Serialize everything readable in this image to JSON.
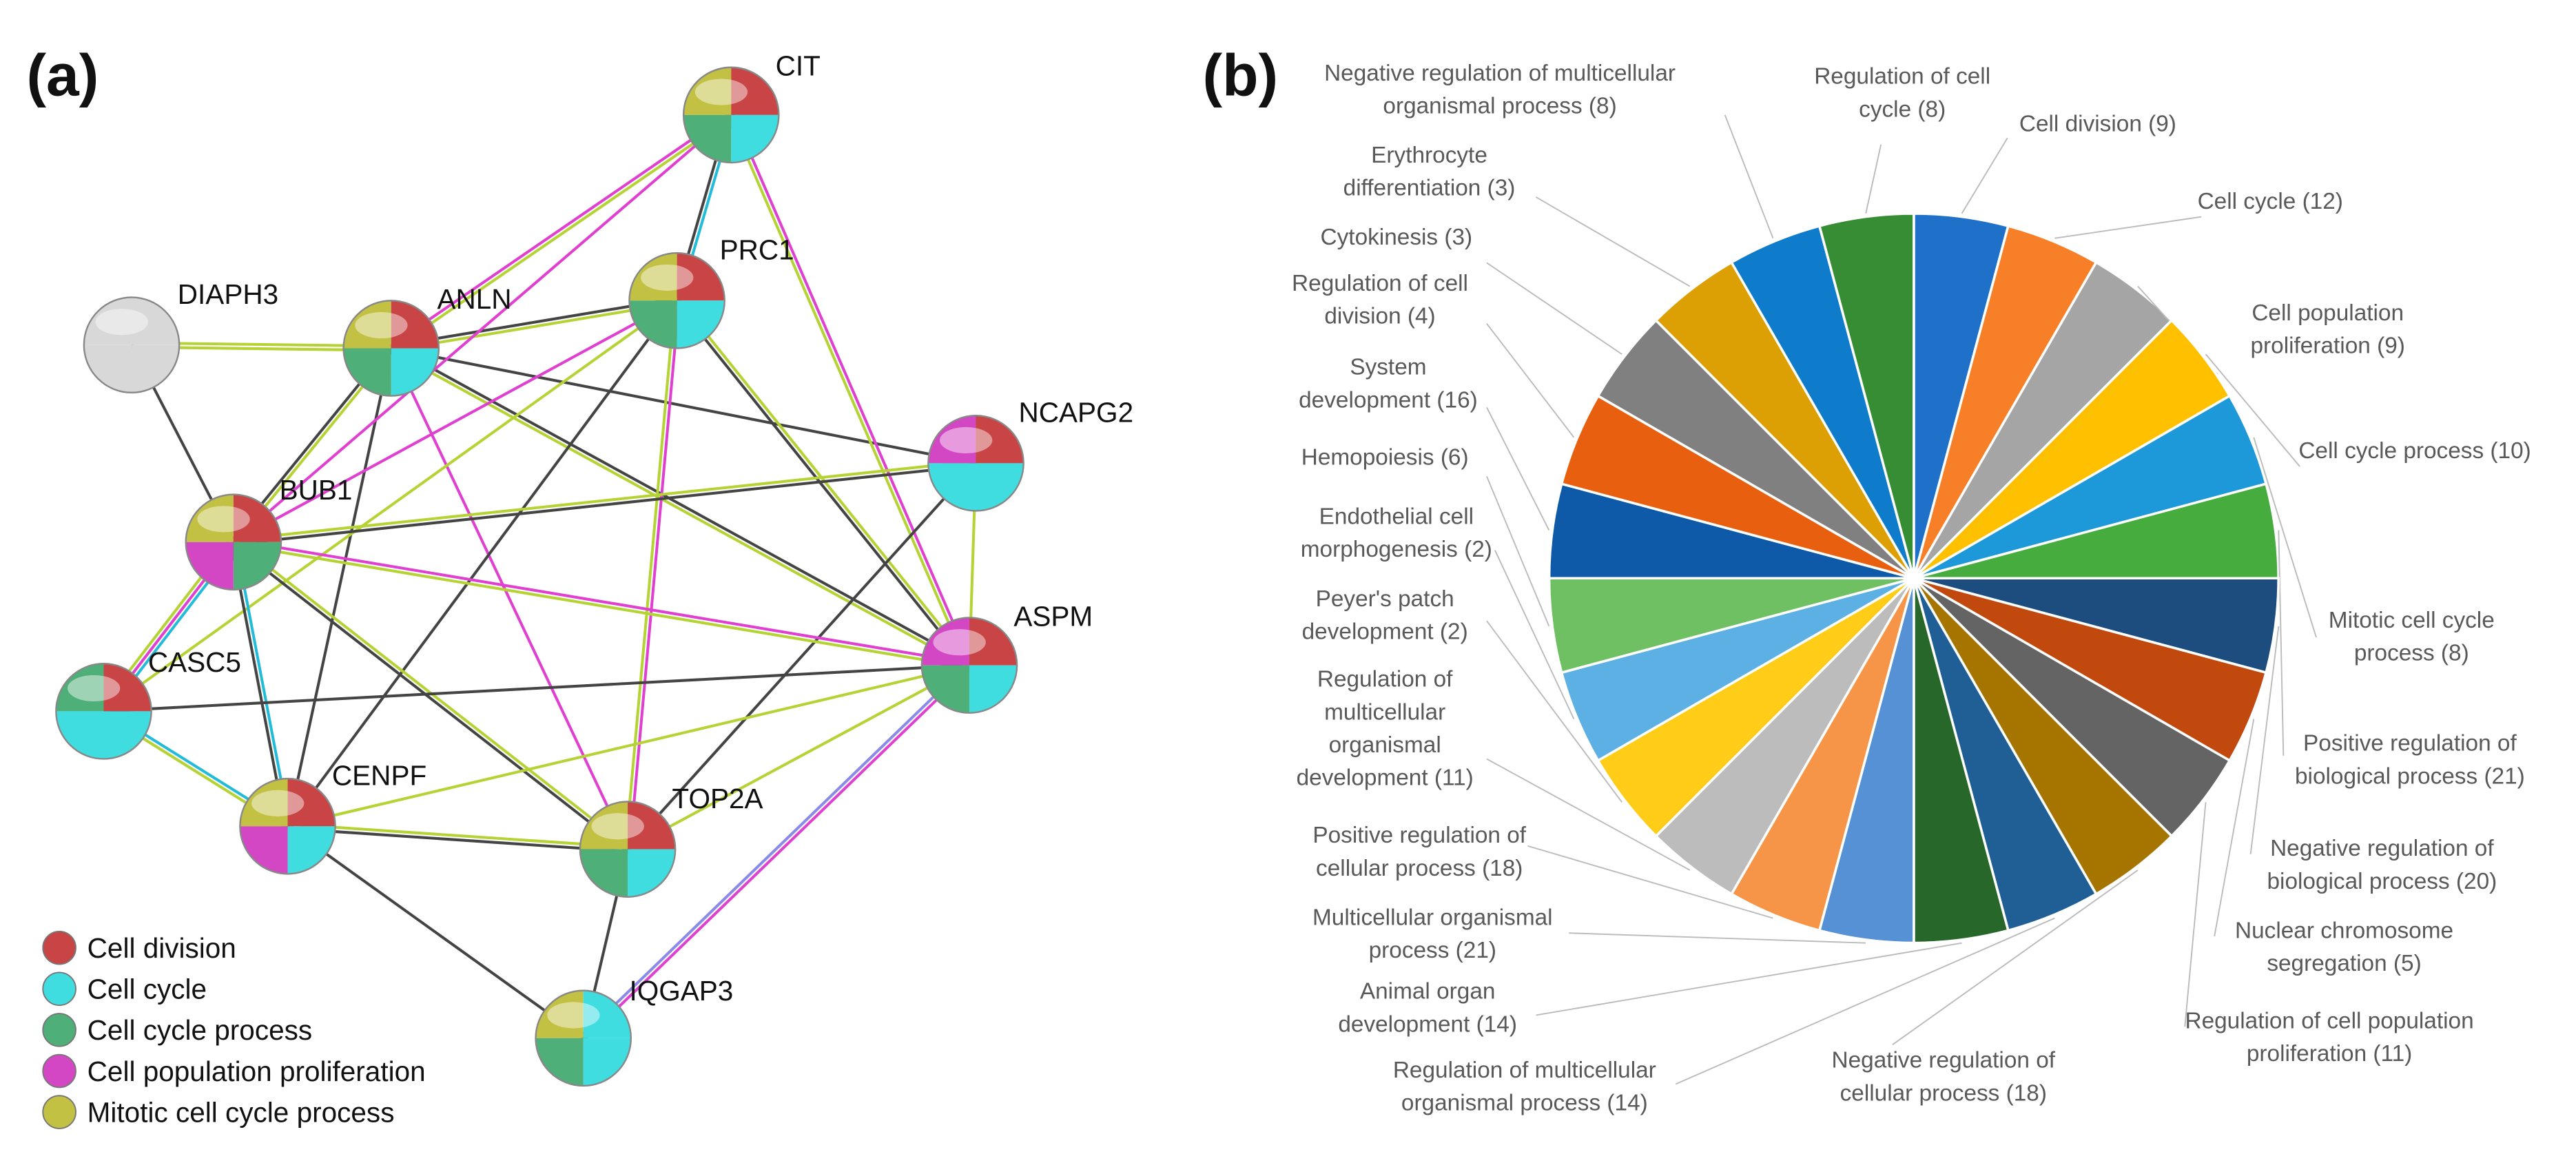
{
  "panel_a": {
    "label": "(a)",
    "nodes": [
      {
        "label": "CIT"
      },
      {
        "label": "PRC1"
      },
      {
        "label": "ANLN"
      },
      {
        "label": "DIAPH3"
      },
      {
        "label": "NCAPG2"
      },
      {
        "label": "BUB1"
      },
      {
        "label": "ASPM"
      },
      {
        "label": "CASC5"
      },
      {
        "label": "CENPF"
      },
      {
        "label": "TOP2A"
      },
      {
        "label": "IQGAP3"
      }
    ],
    "legend": [
      {
        "label": "Cell division",
        "color": "#c94444"
      },
      {
        "label": "Cell cycle",
        "color": "#3fdde0"
      },
      {
        "label": "Cell cycle process",
        "color": "#4faf78"
      },
      {
        "label": "Cell population proliferation",
        "color": "#d347c4"
      },
      {
        "label": "Mitotic cell cycle process",
        "color": "#c3c143"
      }
    ]
  },
  "panel_b": {
    "label": "(b)",
    "slices": [
      {
        "label": [
          "Cell division (9)"
        ]
      },
      {
        "label": [
          "Cell cycle (12)"
        ]
      },
      {
        "label": [
          "Cell population",
          "proliferation (9)"
        ]
      },
      {
        "label": [
          "Cell cycle process (10)"
        ]
      },
      {
        "label": [
          "Mitotic cell cycle",
          "process (8)"
        ]
      },
      {
        "label": [
          "Positive regulation of",
          "biological process (21)"
        ]
      },
      {
        "label": [
          "Negative regulation of",
          "biological process (20)"
        ]
      },
      {
        "label": [
          "Nuclear chromosome",
          "segregation (5)"
        ]
      },
      {
        "label": [
          "Regulation of cell population",
          "proliferation (11)"
        ]
      },
      {
        "label": [
          "Negative regulation of",
          "cellular process (18)"
        ]
      },
      {
        "label": [
          "Regulation of multicellular",
          "organismal process (14)"
        ]
      },
      {
        "label": [
          "Animal organ",
          "development (14)"
        ]
      },
      {
        "label": [
          "Multicellular organismal",
          "process (21)"
        ]
      },
      {
        "label": [
          "Positive regulation of",
          "cellular process (18)"
        ]
      },
      {
        "label": [
          "Regulation of",
          "multicellular",
          "organismal",
          "development (11)"
        ]
      },
      {
        "label": [
          "Peyer's patch",
          "development (2)"
        ]
      },
      {
        "label": [
          "Endothelial cell",
          "morphogenesis (2)"
        ]
      },
      {
        "label": [
          "Hemopoiesis (6)"
        ]
      },
      {
        "label": [
          "System",
          "development (16)"
        ]
      },
      {
        "label": [
          "Regulation of cell",
          "division (4)"
        ]
      },
      {
        "label": [
          "Cytokinesis (3)"
        ]
      },
      {
        "label": [
          "Erythrocyte",
          "differentiation (3)"
        ]
      },
      {
        "label": [
          "Negative regulation of multicellular",
          "organismal process (8)"
        ]
      },
      {
        "label": [
          "Regulation of cell",
          "cycle (8)"
        ]
      }
    ]
  }
}
